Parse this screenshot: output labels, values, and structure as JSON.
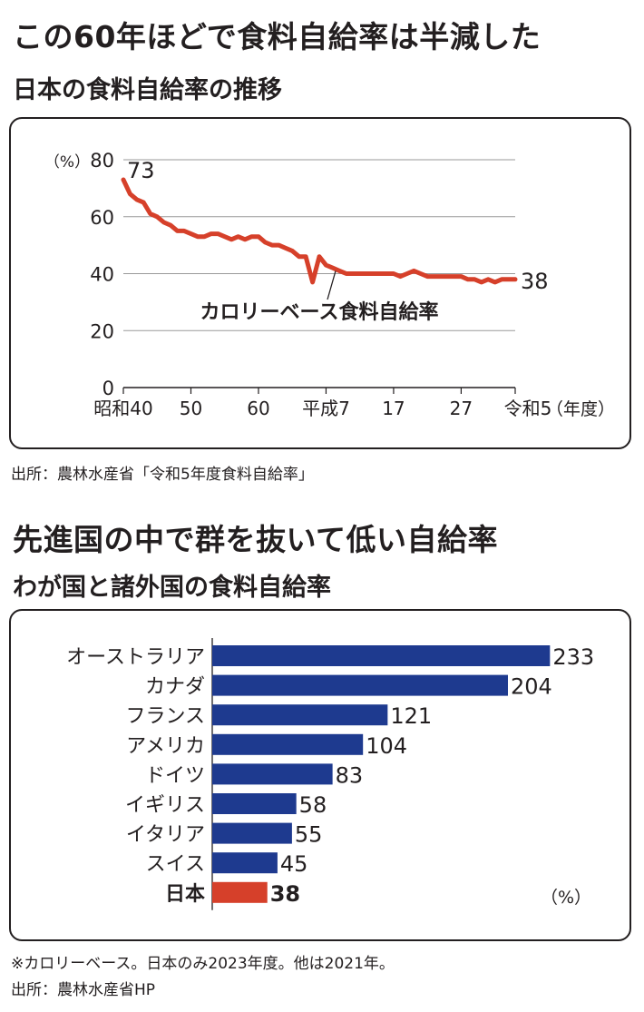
{
  "section1": {
    "headline": "この60年ほどで食料自給率は半減した",
    "subheadline": "日本の食料自給率の推移",
    "source": "出所：農林水産省「令和5年度食料自給率」"
  },
  "section2": {
    "headline": "先進国の中で群を抜いて低い自給率",
    "subheadline": "わが国と諸外国の食料自給率",
    "note": "※カロリーベース。日本のみ2023年度。他は2021年。",
    "source": "出所：農林水産省HP"
  },
  "colors": {
    "line": "#d6402a",
    "bar": "#1e3a8f",
    "japan_bar": "#d6402a",
    "grid": "#999999",
    "text": "#231f20"
  },
  "chart_data": [
    {
      "type": "line",
      "unit_label": "（%）",
      "xlabel": "（年度）",
      "ylim": [
        0,
        80
      ],
      "xlim": [
        1965,
        2023
      ],
      "y_ticks": [
        0,
        20,
        40,
        60,
        80
      ],
      "x_ticks": [
        {
          "x": 1965,
          "label": "昭和40"
        },
        {
          "x": 1975,
          "label": "50"
        },
        {
          "x": 1985,
          "label": "60"
        },
        {
          "x": 1995,
          "label": "平成7"
        },
        {
          "x": 2005,
          "label": "17"
        },
        {
          "x": 2015,
          "label": "27"
        },
        {
          "x": 2023,
          "label": "令和5"
        }
      ],
      "grid": true,
      "series": [
        {
          "name": "カロリーベース食料自給率",
          "x": [
            1965,
            1966,
            1967,
            1968,
            1969,
            1970,
            1971,
            1972,
            1973,
            1974,
            1975,
            1976,
            1977,
            1978,
            1979,
            1980,
            1981,
            1982,
            1983,
            1984,
            1985,
            1986,
            1987,
            1988,
            1989,
            1990,
            1991,
            1992,
            1993,
            1994,
            1995,
            1996,
            1997,
            1998,
            1999,
            2000,
            2001,
            2002,
            2003,
            2004,
            2005,
            2006,
            2007,
            2008,
            2009,
            2010,
            2011,
            2012,
            2013,
            2014,
            2015,
            2016,
            2017,
            2018,
            2019,
            2020,
            2021,
            2022,
            2023
          ],
          "values": [
            73,
            68,
            66,
            65,
            61,
            60,
            58,
            57,
            55,
            55,
            54,
            53,
            53,
            54,
            54,
            53,
            52,
            53,
            52,
            53,
            53,
            51,
            50,
            50,
            49,
            48,
            46,
            46,
            37,
            46,
            43,
            42,
            41,
            40,
            40,
            40,
            40,
            40,
            40,
            40,
            40,
            39,
            40,
            41,
            40,
            39,
            39,
            39,
            39,
            39,
            39,
            38,
            38,
            37,
            38,
            37,
            38,
            38,
            38
          ]
        }
      ],
      "annotations": [
        {
          "x": 1965,
          "value": 73,
          "text": "73"
        },
        {
          "x": 2023,
          "value": 38,
          "text": "38"
        }
      ]
    },
    {
      "type": "bar",
      "orientation": "horizontal",
      "unit_label": "（%）",
      "categories": [
        "オーストラリア",
        "カナダ",
        "フランス",
        "アメリカ",
        "ドイツ",
        "イギリス",
        "イタリア",
        "スイス",
        "日本"
      ],
      "values": [
        233,
        204,
        121,
        104,
        83,
        58,
        55,
        45,
        38
      ],
      "highlight": "日本"
    }
  ]
}
